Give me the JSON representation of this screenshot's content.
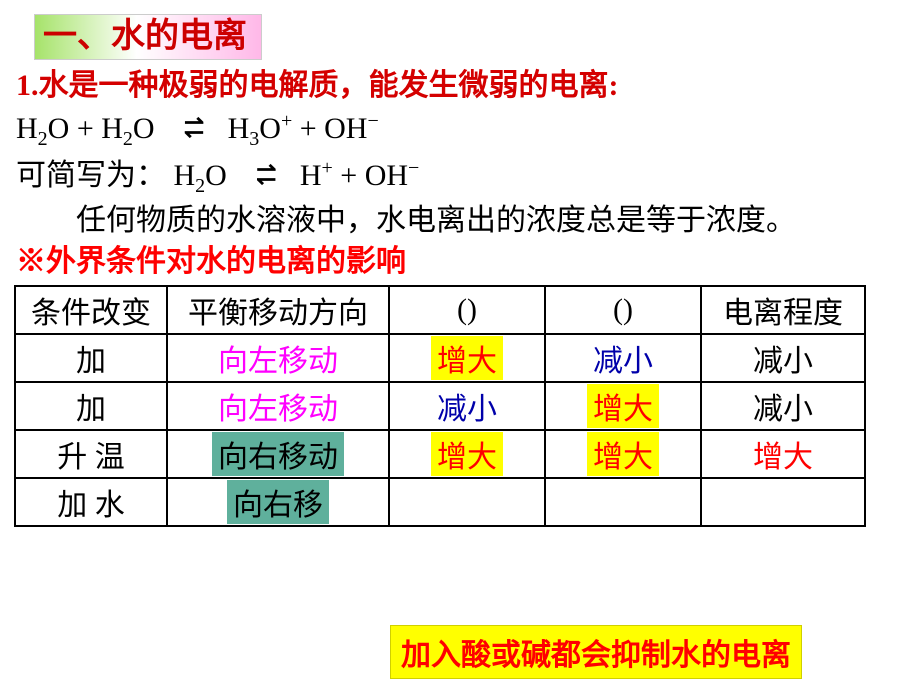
{
  "title": "一、水的电离",
  "line1": "1.水是一种极弱的电解质，能发生微弱的电离:",
  "eq": {
    "lhs1": "H",
    "sub1": "2",
    "o1": "O  +  H",
    "sub2": "2",
    "o2": "O",
    "to1_top": "⇀",
    "to1_bot": "↽",
    "rhs1a": "H",
    "rhs1sub": "3",
    "rhs1b": "O",
    "rhs1sup": "+",
    "plus": "  +  OH",
    "rhs1sup2": "−"
  },
  "line2_prefix": "可简写为：",
  "eq2": {
    "lhs": "H",
    "sub": "2",
    "o": "O",
    "rhs1": "H",
    "sup1": "+",
    "plus": "  +  OH",
    "sup2": "−"
  },
  "para": "任何物质的水溶液中，水电离出的浓度总是等于浓度。",
  "subhead": "※外界条件对水的电离的影响",
  "table": {
    "header": [
      "条件改变",
      "平衡移动方向",
      "()",
      "()",
      "电离程度"
    ],
    "rows": [
      {
        "cond": {
          "text": "加",
          "style": "plain"
        },
        "dir": {
          "text": "向左移动",
          "style": "magenta"
        },
        "c2": {
          "text": "增大",
          "style": "hl-yellow"
        },
        "c3": {
          "text": "减小",
          "style": "blue"
        },
        "c4": {
          "text": "减小",
          "style": "plain"
        }
      },
      {
        "cond": {
          "text": "加",
          "style": "plain"
        },
        "dir": {
          "text": "向左移动",
          "style": "magenta"
        },
        "c2": {
          "text": "减小",
          "style": "blue"
        },
        "c3": {
          "text": "增大",
          "style": "hl-yellow"
        },
        "c4": {
          "text": "减小",
          "style": "plain"
        }
      },
      {
        "cond": {
          "text": "升  温",
          "style": "plain"
        },
        "dir": {
          "text": "向右移动",
          "style": "hl-teal"
        },
        "c2": {
          "text": "增大",
          "style": "hl-yellow"
        },
        "c3": {
          "text": "增大",
          "style": "hl-yellow"
        },
        "c4": {
          "text": "增大",
          "style": "red-t"
        }
      },
      {
        "cond": {
          "text": "加  水",
          "style": "plain"
        },
        "dir": {
          "text": "向右移",
          "style": "hl-teal"
        },
        "c2": {
          "text": "",
          "style": "plain"
        },
        "c3": {
          "text": "",
          "style": "plain"
        },
        "c4": {
          "text": "",
          "style": "plain"
        }
      }
    ]
  },
  "callout": "加入酸或碱都会抑制水的电离",
  "colors": {
    "title_red": "#cc0000",
    "red": "#d40000",
    "magenta": "#ff00ff",
    "blue": "#0000aa",
    "yellow_bg": "#ffff00",
    "teal_bg": "#5fb09c"
  },
  "fonts": {
    "kaiti_size": 30,
    "title_size": 34,
    "eq_size": 30
  }
}
